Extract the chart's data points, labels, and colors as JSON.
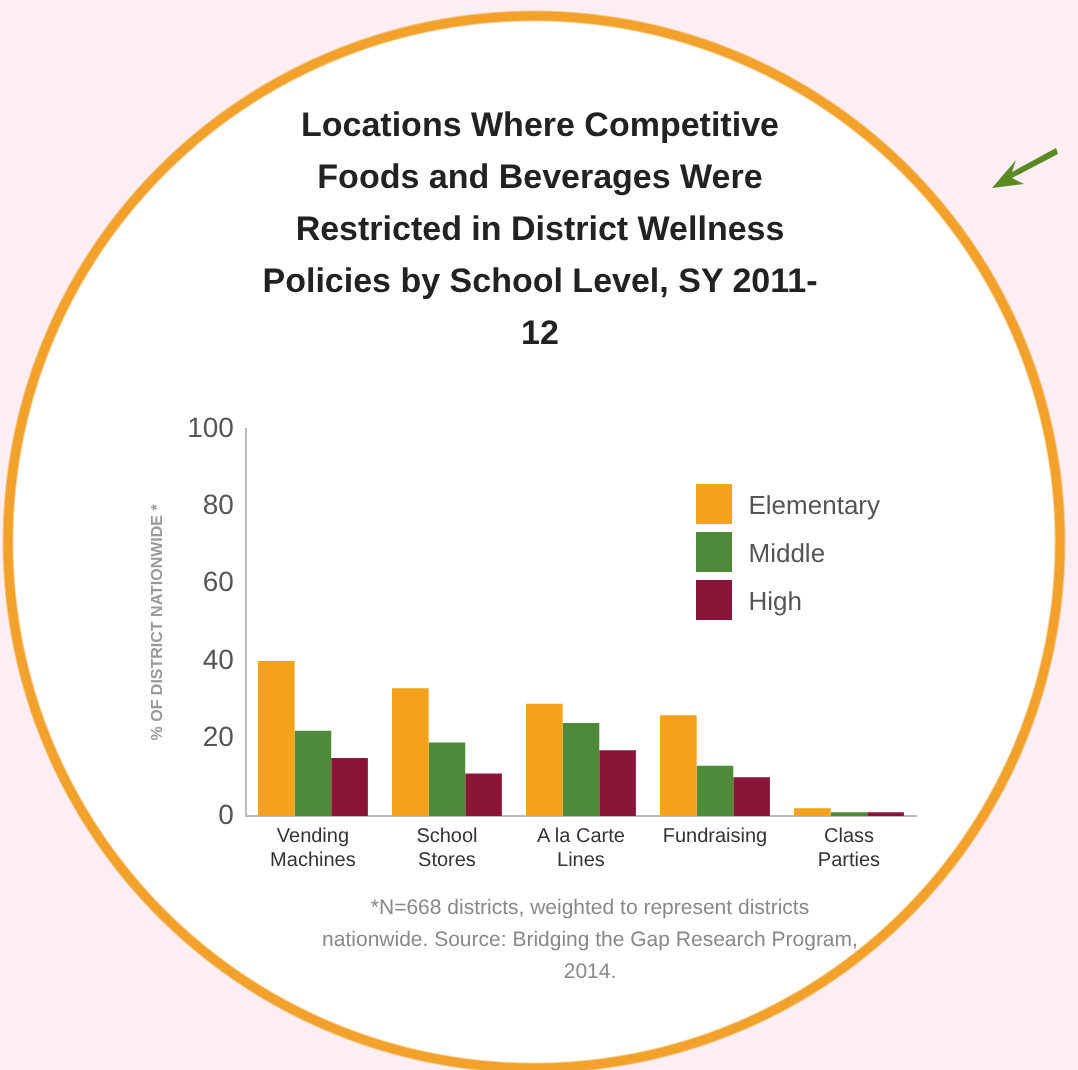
{
  "chart_data": {
    "type": "bar",
    "title": "Locations Where Competitive Foods and Beverages Were Restricted in District Wellness Policies by School Level, SY 2011-12",
    "ylabel": "% OF DISTRICT NATIONWIDE *",
    "categories": [
      "Vending Machines",
      "School Stores",
      "A la Carte Lines",
      "Fundraising",
      "Class Parties"
    ],
    "series": [
      {
        "name": "Elementary",
        "color": "#f5a21b",
        "values": [
          40,
          33,
          29,
          26,
          2
        ]
      },
      {
        "name": "Middle",
        "color": "#4f8a3a",
        "values": [
          22,
          19,
          24,
          13,
          1
        ]
      },
      {
        "name": "High",
        "color": "#8b1538",
        "values": [
          15,
          11,
          17,
          10,
          1
        ]
      }
    ],
    "ylim": [
      0,
      100
    ],
    "yticks": [
      0,
      20,
      40,
      60,
      80,
      100
    ],
    "grid": false,
    "legend": "top right",
    "annotations": [
      "*N=668 districts, weighted to represent districts nationwide. Source: Bridging the Gap Research Program, 2014."
    ]
  }
}
